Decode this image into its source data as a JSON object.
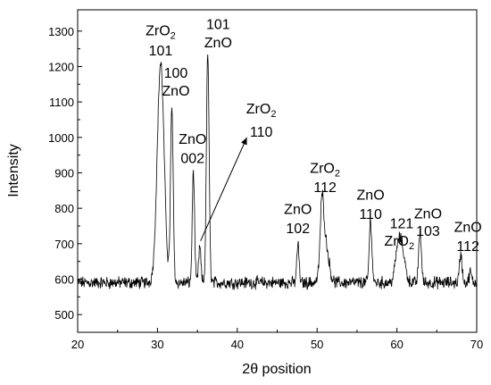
{
  "chart_data": {
    "type": "line",
    "title": "",
    "xlabel": "2θ position",
    "ylabel": "Intensity",
    "xlim": [
      20,
      70
    ],
    "ylim": [
      450,
      1360
    ],
    "x_ticks": [
      20,
      30,
      40,
      50,
      60,
      70
    ],
    "y_ticks": [
      500,
      600,
      700,
      800,
      900,
      1000,
      1100,
      1200,
      1300
    ],
    "grid": false,
    "legend": "none",
    "line_color": "#000000",
    "baseline": 590,
    "noise_amplitude": 28,
    "peaks": [
      {
        "x": 30.4,
        "height": 620,
        "width": 0.9
      },
      {
        "x": 31.8,
        "height": 490,
        "width": 0.35
      },
      {
        "x": 34.5,
        "height": 315,
        "width": 0.3
      },
      {
        "x": 35.3,
        "height": 100,
        "width": 0.3
      },
      {
        "x": 36.3,
        "height": 650,
        "width": 0.35
      },
      {
        "x": 47.6,
        "height": 110,
        "width": 0.3
      },
      {
        "x": 50.6,
        "height": 170,
        "width": 0.45
      },
      {
        "x": 51.0,
        "height": 120,
        "width": 0.9
      },
      {
        "x": 56.7,
        "height": 175,
        "width": 0.35
      },
      {
        "x": 60.0,
        "height": 40,
        "width": 0.6
      },
      {
        "x": 60.5,
        "height": 115,
        "width": 0.9
      },
      {
        "x": 62.9,
        "height": 145,
        "width": 0.35
      },
      {
        "x": 68.0,
        "height": 80,
        "width": 0.35
      },
      {
        "x": 69.2,
        "height": 30,
        "width": 0.3
      }
    ],
    "annotations": [
      {
        "text": "ZrO",
        "sub": "2",
        "x": 30.4,
        "y": 1288
      },
      {
        "text": "101",
        "x": 30.4,
        "y": 1232
      },
      {
        "text": "100",
        "x": 32.3,
        "y": 1168
      },
      {
        "text": "ZnO",
        "x": 32.3,
        "y": 1118
      },
      {
        "text": "ZnO",
        "x": 34.4,
        "y": 982
      },
      {
        "text": "002",
        "x": 34.4,
        "y": 928
      },
      {
        "text": "101",
        "x": 37.6,
        "y": 1306
      },
      {
        "text": "ZnO",
        "x": 37.6,
        "y": 1254
      },
      {
        "text": "ZrO",
        "sub": "2",
        "x": 43.0,
        "y": 1068
      },
      {
        "text": "110",
        "x": 43.0,
        "y": 1002
      },
      {
        "text": "ZrO",
        "sub": "2",
        "x": 51.0,
        "y": 900
      },
      {
        "text": "112",
        "x": 51.0,
        "y": 846
      },
      {
        "text": "ZnO",
        "x": 47.6,
        "y": 784
      },
      {
        "text": "102",
        "x": 47.6,
        "y": 730
      },
      {
        "text": "ZnO",
        "x": 56.7,
        "y": 824
      },
      {
        "text": "110",
        "x": 56.7,
        "y": 770
      },
      {
        "text": "121",
        "x": 60.6,
        "y": 744
      },
      {
        "text": "ZrO",
        "sub": "2",
        "x": 60.3,
        "y": 694
      },
      {
        "text": "ZnO",
        "x": 63.9,
        "y": 772
      },
      {
        "text": "103",
        "x": 63.9,
        "y": 722
      },
      {
        "text": "ZnO",
        "x": 68.9,
        "y": 734
      },
      {
        "text": "112",
        "x": 68.9,
        "y": 680
      }
    ],
    "arrow": {
      "from": [
        35.4,
        708
      ],
      "to": [
        41.2,
        1000
      ]
    }
  }
}
